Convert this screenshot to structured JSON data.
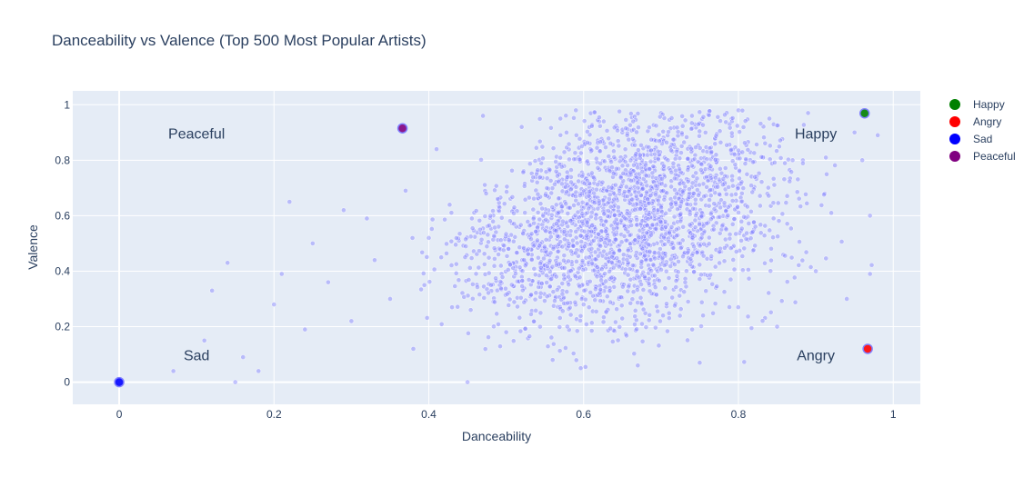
{
  "chart_data": {
    "type": "scatter",
    "title": "Danceability vs Valence (Top 500 Most Popular Artists)",
    "xlabel": "Danceability",
    "ylabel": "Valence",
    "xlim": [
      -0.06,
      1.035
    ],
    "ylim": [
      -0.08,
      1.05
    ],
    "x_ticks": [
      "0",
      "0.2",
      "0.4",
      "0.6",
      "0.8",
      "1"
    ],
    "y_ticks": [
      "0",
      "0.2",
      "0.4",
      "0.6",
      "0.8",
      "1"
    ],
    "grid": true,
    "legend_position": "right",
    "background_points": {
      "color": "#8080ff",
      "opacity": 0.45,
      "count_estimate": 2400,
      "samples": [
        [
          0.07,
          0.04
        ],
        [
          0.11,
          0.15
        ],
        [
          0.12,
          0.33
        ],
        [
          0.14,
          0.43
        ],
        [
          0.15,
          0.0
        ],
        [
          0.16,
          0.09
        ],
        [
          0.18,
          0.04
        ],
        [
          0.2,
          0.28
        ],
        [
          0.21,
          0.39
        ],
        [
          0.22,
          0.65
        ],
        [
          0.24,
          0.19
        ],
        [
          0.25,
          0.5
        ],
        [
          0.27,
          0.36
        ],
        [
          0.29,
          0.62
        ],
        [
          0.3,
          0.22
        ],
        [
          0.32,
          0.59
        ],
        [
          0.33,
          0.44
        ],
        [
          0.35,
          0.3
        ],
        [
          0.37,
          0.69
        ],
        [
          0.38,
          0.12
        ],
        [
          0.4,
          0.52
        ],
        [
          0.41,
          0.84
        ],
        [
          0.43,
          0.27
        ],
        [
          0.45,
          0.0
        ],
        [
          0.47,
          0.96
        ],
        [
          0.49,
          0.62
        ],
        [
          0.5,
          0.18
        ],
        [
          0.52,
          0.92
        ],
        [
          0.54,
          0.72
        ],
        [
          0.56,
          0.08
        ],
        [
          0.57,
          0.95
        ],
        [
          0.59,
          0.98
        ],
        [
          0.6,
          0.28
        ],
        [
          0.62,
          0.94
        ],
        [
          0.63,
          0.55
        ],
        [
          0.65,
          0.9
        ],
        [
          0.67,
          0.06
        ],
        [
          0.68,
          0.79
        ],
        [
          0.7,
          0.97
        ],
        [
          0.72,
          0.45
        ],
        [
          0.74,
          0.96
        ],
        [
          0.75,
          0.07
        ],
        [
          0.77,
          0.88
        ],
        [
          0.79,
          0.37
        ],
        [
          0.8,
          0.98
        ],
        [
          0.82,
          0.55
        ],
        [
          0.84,
          0.95
        ],
        [
          0.85,
          0.2
        ],
        [
          0.87,
          0.8
        ],
        [
          0.89,
          0.97
        ],
        [
          0.9,
          0.4
        ],
        [
          0.92,
          0.61
        ],
        [
          0.94,
          0.3
        ],
        [
          0.95,
          0.9
        ],
        [
          0.96,
          0.8
        ],
        [
          0.97,
          0.6
        ],
        [
          0.97,
          0.39
        ],
        [
          0.98,
          0.89
        ]
      ]
    },
    "series": [
      {
        "name": "Happy",
        "color": "#008000",
        "x": [
          0.963
        ],
        "y": [
          0.969
        ]
      },
      {
        "name": "Angry",
        "color": "#ff0000",
        "x": [
          0.967
        ],
        "y": [
          0.12
        ]
      },
      {
        "name": "Sad",
        "color": "#0000ff",
        "x": [
          0.0
        ],
        "y": [
          0.0
        ]
      },
      {
        "name": "Peaceful",
        "color": "#800080",
        "x": [
          0.366
        ],
        "y": [
          0.915
        ]
      }
    ],
    "annotations": [
      {
        "text": "Peaceful",
        "x": 0.1,
        "y": 0.895
      },
      {
        "text": "Happy",
        "x": 0.9,
        "y": 0.895
      },
      {
        "text": "Sad",
        "x": 0.1,
        "y": 0.095
      },
      {
        "text": "Angry",
        "x": 0.9,
        "y": 0.095
      }
    ]
  }
}
